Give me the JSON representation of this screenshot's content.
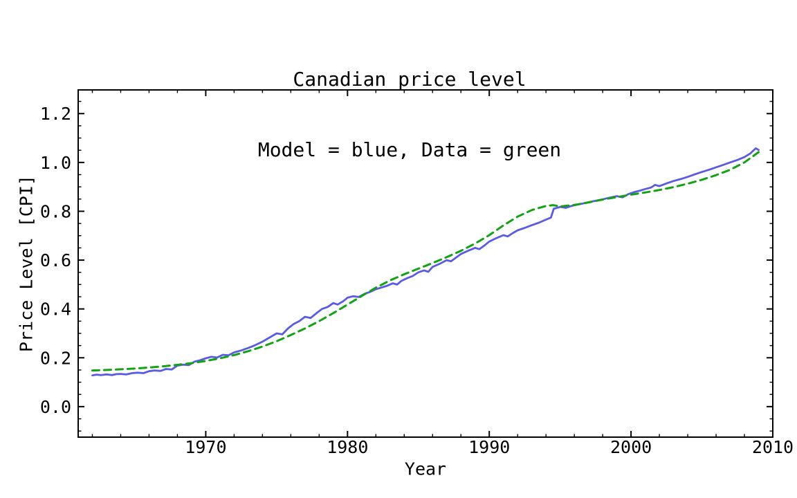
{
  "chart_data": {
    "type": "line",
    "title": "Canadian price level",
    "subtitle": "Model = blue, Data = green",
    "xlabel": "Year",
    "ylabel": "Price Level [CPI]",
    "x_range": [
      1961,
      2010
    ],
    "y_range": [
      -0.125,
      1.297
    ],
    "x_major_ticks": [
      1970,
      1980,
      1990,
      2000,
      2010
    ],
    "x_minor_tick_step_years": 2,
    "y_major_ticks": [
      0.0,
      0.2,
      0.4,
      0.6,
      0.8,
      1.0,
      1.2
    ],
    "y_minor_tick_step": 0.05,
    "grid": false,
    "background_color": "#ffffff",
    "frame_color": "#000000",
    "series": [
      {
        "name": "Model",
        "color": "#5a5ae8",
        "style": "solid",
        "line_width": 2.8,
        "points": [
          [
            1962.0,
            0.128
          ],
          [
            1962.3,
            0.131
          ],
          [
            1962.6,
            0.129
          ],
          [
            1963.0,
            0.132
          ],
          [
            1963.4,
            0.129
          ],
          [
            1963.7,
            0.133
          ],
          [
            1964.0,
            0.134
          ],
          [
            1964.4,
            0.132
          ],
          [
            1964.8,
            0.137
          ],
          [
            1965.2,
            0.139
          ],
          [
            1965.6,
            0.137
          ],
          [
            1966.0,
            0.145
          ],
          [
            1966.4,
            0.148
          ],
          [
            1966.8,
            0.146
          ],
          [
            1967.2,
            0.154
          ],
          [
            1967.6,
            0.152
          ],
          [
            1968.0,
            0.168
          ],
          [
            1968.4,
            0.172
          ],
          [
            1968.8,
            0.17
          ],
          [
            1969.2,
            0.184
          ],
          [
            1969.6,
            0.19
          ],
          [
            1970.0,
            0.198
          ],
          [
            1970.4,
            0.204
          ],
          [
            1970.8,
            0.201
          ],
          [
            1971.2,
            0.212
          ],
          [
            1971.6,
            0.21
          ],
          [
            1972.0,
            0.222
          ],
          [
            1972.5,
            0.23
          ],
          [
            1973.0,
            0.24
          ],
          [
            1973.5,
            0.252
          ],
          [
            1974.0,
            0.266
          ],
          [
            1974.5,
            0.283
          ],
          [
            1975.0,
            0.3
          ],
          [
            1975.4,
            0.296
          ],
          [
            1975.8,
            0.32
          ],
          [
            1976.2,
            0.338
          ],
          [
            1976.6,
            0.35
          ],
          [
            1977.0,
            0.368
          ],
          [
            1977.4,
            0.363
          ],
          [
            1977.8,
            0.382
          ],
          [
            1978.2,
            0.4
          ],
          [
            1978.6,
            0.408
          ],
          [
            1979.0,
            0.424
          ],
          [
            1979.3,
            0.418
          ],
          [
            1979.7,
            0.432
          ],
          [
            1980.0,
            0.446
          ],
          [
            1980.4,
            0.452
          ],
          [
            1980.8,
            0.449
          ],
          [
            1981.2,
            0.462
          ],
          [
            1981.6,
            0.47
          ],
          [
            1982.0,
            0.481
          ],
          [
            1982.4,
            0.488
          ],
          [
            1982.8,
            0.495
          ],
          [
            1983.2,
            0.505
          ],
          [
            1983.5,
            0.5
          ],
          [
            1983.8,
            0.515
          ],
          [
            1984.2,
            0.526
          ],
          [
            1984.6,
            0.535
          ],
          [
            1985.0,
            0.55
          ],
          [
            1985.4,
            0.558
          ],
          [
            1985.7,
            0.552
          ],
          [
            1986.0,
            0.572
          ],
          [
            1986.5,
            0.585
          ],
          [
            1987.0,
            0.6
          ],
          [
            1987.3,
            0.595
          ],
          [
            1987.7,
            0.612
          ],
          [
            1988.0,
            0.625
          ],
          [
            1988.5,
            0.638
          ],
          [
            1989.0,
            0.65
          ],
          [
            1989.3,
            0.645
          ],
          [
            1989.7,
            0.662
          ],
          [
            1990.0,
            0.676
          ],
          [
            1990.5,
            0.69
          ],
          [
            1991.0,
            0.702
          ],
          [
            1991.3,
            0.697
          ],
          [
            1991.7,
            0.712
          ],
          [
            1992.0,
            0.722
          ],
          [
            1992.5,
            0.732
          ],
          [
            1993.0,
            0.743
          ],
          [
            1993.5,
            0.753
          ],
          [
            1994.0,
            0.766
          ],
          [
            1994.35,
            0.774
          ],
          [
            1994.55,
            0.81
          ],
          [
            1995.0,
            0.818
          ],
          [
            1995.4,
            0.814
          ],
          [
            1995.8,
            0.822
          ],
          [
            1996.2,
            0.827
          ],
          [
            1996.6,
            0.832
          ],
          [
            1997.0,
            0.837
          ],
          [
            1997.5,
            0.843
          ],
          [
            1998.0,
            0.849
          ],
          [
            1998.5,
            0.856
          ],
          [
            1999.0,
            0.862
          ],
          [
            1999.4,
            0.857
          ],
          [
            1999.8,
            0.87
          ],
          [
            2000.2,
            0.878
          ],
          [
            2000.6,
            0.884
          ],
          [
            2001.0,
            0.891
          ],
          [
            2001.4,
            0.897
          ],
          [
            2001.7,
            0.908
          ],
          [
            2002.0,
            0.903
          ],
          [
            2002.5,
            0.914
          ],
          [
            2003.0,
            0.924
          ],
          [
            2003.5,
            0.932
          ],
          [
            2004.0,
            0.941
          ],
          [
            2004.5,
            0.951
          ],
          [
            2005.0,
            0.961
          ],
          [
            2005.5,
            0.97
          ],
          [
            2006.0,
            0.98
          ],
          [
            2006.5,
            0.99
          ],
          [
            2007.0,
            1.0
          ],
          [
            2007.5,
            1.01
          ],
          [
            2008.0,
            1.022
          ],
          [
            2008.4,
            1.036
          ],
          [
            2008.8,
            1.058
          ],
          [
            2009.0,
            1.051
          ]
        ]
      },
      {
        "name": "Data",
        "color": "#12a312",
        "style": "dashed",
        "dash_pattern": [
          10,
          7
        ],
        "line_width": 3,
        "points": [
          [
            1962,
            0.148
          ],
          [
            1963,
            0.15
          ],
          [
            1964,
            0.153
          ],
          [
            1965,
            0.156
          ],
          [
            1966,
            0.16
          ],
          [
            1967,
            0.165
          ],
          [
            1968,
            0.171
          ],
          [
            1969,
            0.178
          ],
          [
            1970,
            0.187
          ],
          [
            1971,
            0.198
          ],
          [
            1972,
            0.211
          ],
          [
            1973,
            0.227
          ],
          [
            1974,
            0.246
          ],
          [
            1975,
            0.268
          ],
          [
            1976,
            0.293
          ],
          [
            1977,
            0.32
          ],
          [
            1978,
            0.35
          ],
          [
            1979,
            0.383
          ],
          [
            1980,
            0.418
          ],
          [
            1981,
            0.453
          ],
          [
            1982,
            0.487
          ],
          [
            1983,
            0.517
          ],
          [
            1984,
            0.542
          ],
          [
            1985,
            0.565
          ],
          [
            1986,
            0.588
          ],
          [
            1987,
            0.612
          ],
          [
            1988,
            0.638
          ],
          [
            1989,
            0.668
          ],
          [
            1990,
            0.702
          ],
          [
            1991,
            0.742
          ],
          [
            1992,
            0.778
          ],
          [
            1993,
            0.805
          ],
          [
            1994,
            0.822
          ],
          [
            1994.5,
            0.825
          ],
          [
            1995,
            0.82
          ],
          [
            1996,
            0.826
          ],
          [
            1997,
            0.836
          ],
          [
            1998,
            0.848
          ],
          [
            1999,
            0.858
          ],
          [
            2000,
            0.868
          ],
          [
            2001,
            0.877
          ],
          [
            2002,
            0.887
          ],
          [
            2003,
            0.899
          ],
          [
            2004,
            0.913
          ],
          [
            2005,
            0.929
          ],
          [
            2006,
            0.948
          ],
          [
            2007,
            0.97
          ],
          [
            2008,
            1.0
          ],
          [
            2009,
            1.042
          ]
        ]
      }
    ]
  }
}
